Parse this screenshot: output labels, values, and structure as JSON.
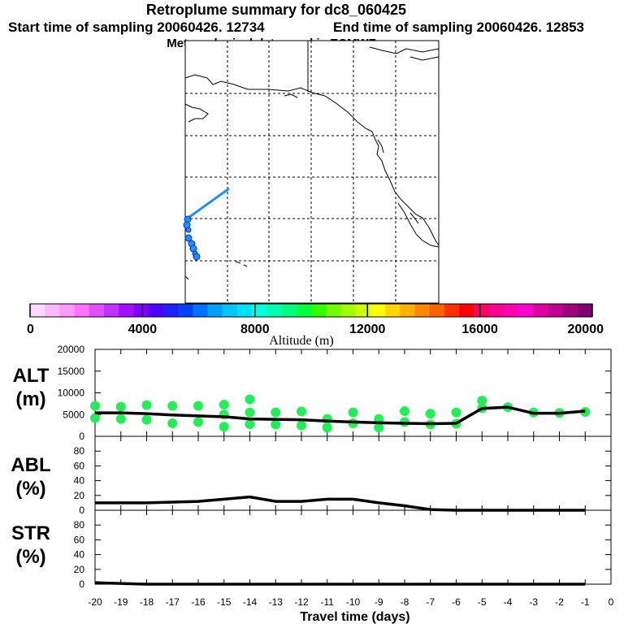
{
  "header": {
    "title": "Retroplume summary for dc8_060425",
    "start_time": "Start time of sampling 20060426. 12734",
    "end_time": "End time of sampling 20060426. 12853",
    "met_data": "Meteorological data used is ECMWF"
  },
  "colorbar": {
    "label": "Altitude (m)",
    "tick_labels": [
      "0",
      "4000",
      "8000",
      "12000",
      "16000",
      "20000"
    ],
    "range": [
      0,
      20000
    ],
    "colors": [
      "#ffd8ff",
      "#ffb8ff",
      "#ff98ff",
      "#ff70ff",
      "#e050ff",
      "#c030ff",
      "#a010ff",
      "#8000ff",
      "#5000ff",
      "#2020ff",
      "#0040ff",
      "#0070ff",
      "#00a0ff",
      "#00c8ff",
      "#00e0ff",
      "#00ffe0",
      "#00ffb0",
      "#00ff80",
      "#00ff40",
      "#30ff00",
      "#70ff00",
      "#a0ff00",
      "#d0ff00",
      "#ffff00",
      "#ffd800",
      "#ffb000",
      "#ff8800",
      "#ff6000",
      "#ff3000",
      "#ff0000",
      "#ff0060",
      "#ff0090",
      "#ff00b0",
      "#ff00d0",
      "#e000a0",
      "#c00090",
      "#a00080",
      "#800070"
    ]
  },
  "chart_data": [
    {
      "type": "line",
      "name": "ALT",
      "ylabel": "ALT\n(m)",
      "ylabel_lines": [
        "ALT",
        "(m)"
      ],
      "ylim": [
        0,
        20000
      ],
      "yticks": [
        0,
        5000,
        10000,
        15000,
        20000
      ],
      "ytick_labels": [
        "0",
        "5000",
        "10000",
        "15000",
        "20000"
      ],
      "x": [
        -20,
        -19,
        -18,
        -17,
        -16,
        -15,
        -14,
        -13,
        -12,
        -11,
        -10,
        -9,
        -8,
        -7,
        -6,
        -5,
        -4,
        -3,
        -2,
        -1
      ],
      "mean": [
        5400,
        5400,
        5200,
        4900,
        4700,
        4500,
        4000,
        3900,
        3800,
        3500,
        3300,
        3100,
        3000,
        2900,
        3000,
        6400,
        6700,
        5300,
        5300,
        5800
      ],
      "scatter_points": [
        [
          -20,
          7000
        ],
        [
          -20,
          4200
        ],
        [
          -19,
          6800
        ],
        [
          -19,
          4000
        ],
        [
          -18,
          7200
        ],
        [
          -18,
          3800
        ],
        [
          -17,
          7000
        ],
        [
          -17,
          3000
        ],
        [
          -16,
          7000
        ],
        [
          -16,
          3300
        ],
        [
          -15,
          7300
        ],
        [
          -15,
          5000
        ],
        [
          -15,
          2200
        ],
        [
          -14,
          8500
        ],
        [
          -14,
          5500
        ],
        [
          -14,
          2800
        ],
        [
          -13,
          5500
        ],
        [
          -13,
          2700
        ],
        [
          -12,
          5700
        ],
        [
          -12,
          2500
        ],
        [
          -11,
          4000
        ],
        [
          -11,
          2000
        ],
        [
          -10,
          3000
        ],
        [
          -10,
          5500
        ],
        [
          -9,
          4000
        ],
        [
          -9,
          2000
        ],
        [
          -8,
          3300
        ],
        [
          -8,
          5800
        ],
        [
          -7,
          2700
        ],
        [
          -7,
          5200
        ],
        [
          -6,
          2900
        ],
        [
          -6,
          5500
        ],
        [
          -5,
          6500
        ],
        [
          -5,
          8200
        ],
        [
          -4,
          6700
        ],
        [
          -3,
          5500
        ],
        [
          -2,
          5400
        ],
        [
          -1,
          5600
        ]
      ]
    },
    {
      "type": "line",
      "name": "ABL",
      "ylabel": "ABL\n(%)",
      "ylabel_lines": [
        "ABL",
        "(%)"
      ],
      "ylim": [
        0,
        100
      ],
      "yticks": [
        0,
        20,
        40,
        60,
        80
      ],
      "ytick_labels": [
        "0",
        "20",
        "40",
        "60",
        "80"
      ],
      "x": [
        -20,
        -19,
        -18,
        -17,
        -16,
        -15,
        -14,
        -13,
        -12,
        -11,
        -10,
        -9,
        -8,
        -7,
        -6,
        -5,
        -4,
        -3,
        -2,
        -1
      ],
      "values": [
        10,
        10,
        10,
        11,
        12,
        15,
        18,
        12,
        12,
        15,
        15,
        10,
        6,
        1,
        0,
        0,
        0,
        0,
        0,
        0
      ]
    },
    {
      "type": "line",
      "name": "STR",
      "ylabel": "STR\n(%)",
      "ylabel_lines": [
        "STR",
        "(%)"
      ],
      "ylim": [
        0,
        100
      ],
      "yticks": [
        0,
        20,
        40,
        60,
        80
      ],
      "ytick_labels": [
        "0",
        "20",
        "40",
        "60",
        "80"
      ],
      "x": [
        -20,
        -19,
        -18,
        -17,
        -16,
        -15,
        -14,
        -13,
        -12,
        -11,
        -10,
        -9,
        -8,
        -7,
        -6,
        -5,
        -4,
        -3,
        -2,
        -1
      ],
      "values": [
        2,
        1,
        0,
        0,
        0,
        0,
        0,
        0,
        0,
        0,
        0,
        0,
        0,
        0,
        0,
        0,
        0,
        0,
        0,
        0
      ],
      "xlabel": "Travel time (days)",
      "xlim": [
        -20,
        0
      ],
      "xtick_labels": [
        "-20",
        "-19",
        "-18",
        "-17",
        "-16",
        "-15",
        "-14",
        "-13",
        "-12",
        "-11",
        "-10",
        "-9",
        "-8",
        "-7",
        "-6",
        "-5",
        "-4",
        "-3",
        "-2",
        "-1",
        "0"
      ]
    }
  ],
  "colors": {
    "mean_line": "#000000",
    "points": "#22ee55",
    "map_track": "#1e90ff"
  }
}
